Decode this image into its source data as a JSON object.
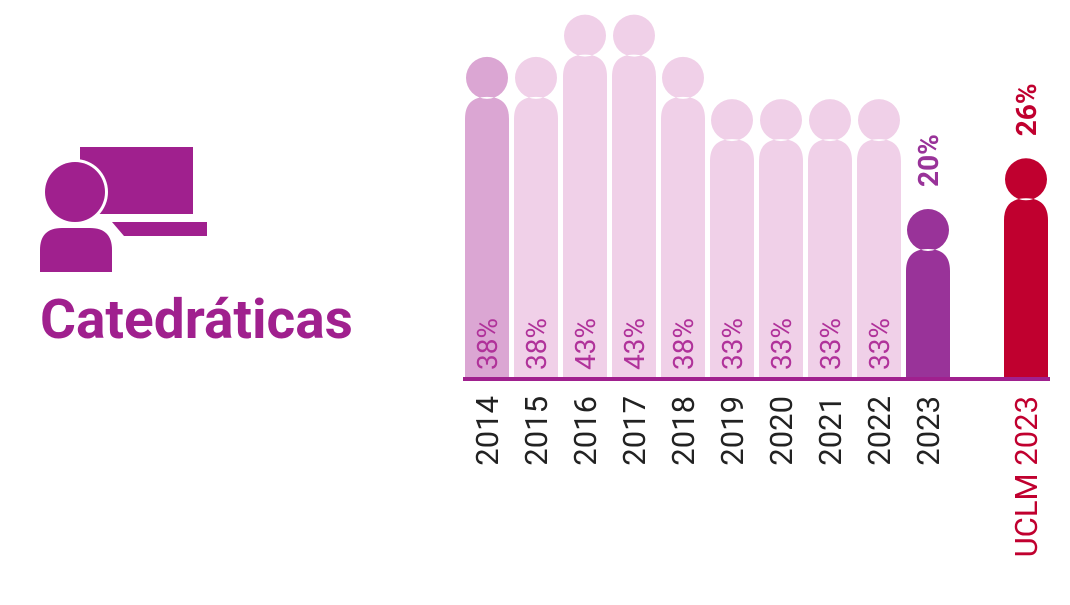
{
  "chart_data": {
    "type": "pictogram-bar",
    "title": "Catedráticas",
    "categories": [
      "2014",
      "2015",
      "2016",
      "2017",
      "2018",
      "2019",
      "2020",
      "2021",
      "2022",
      "2023",
      "UCLM 2023"
    ],
    "values": [
      38,
      38,
      43,
      43,
      38,
      33,
      33,
      33,
      33,
      20,
      26
    ],
    "value_labels": [
      "38%",
      "38%",
      "43%",
      "43%",
      "38%",
      "33%",
      "33%",
      "33%",
      "33%",
      "20%",
      "26%"
    ],
    "colors": [
      "#dba6d3",
      "#f0d0e8",
      "#f0d0e8",
      "#f0d0e8",
      "#f0d0e8",
      "#f0d0e8",
      "#f0d0e8",
      "#f0d0e8",
      "#f0d0e8",
      "#993399",
      "#c0002f"
    ]
  }
}
